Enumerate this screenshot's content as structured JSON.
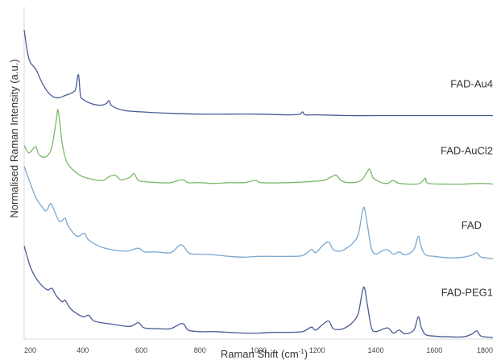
{
  "chart_data": {
    "type": "line",
    "xlabel": "Raman Shift (cm",
    "xlabel_sup": "-1",
    "xlabel_close": ")",
    "ylabel": "Normalised Raman Intensity (a.u.)",
    "xlim": [
      200,
      1800
    ],
    "ylim": [
      0,
      4.4
    ],
    "grid": false,
    "legend": "none",
    "x_ticks": [
      200,
      400,
      600,
      800,
      1000,
      1200,
      1400,
      1600,
      1800
    ],
    "x_tick_labels": [
      "200",
      "400",
      "600",
      "800",
      "1000",
      "1200",
      "1400",
      "1600",
      "1800"
    ],
    "series": [
      {
        "name": "FAD-Au4",
        "color": "#4a5a94",
        "baseline": 3.0,
        "points": [
          [
            200,
            4.15
          ],
          [
            210,
            3.88
          ],
          [
            220,
            3.72
          ],
          [
            240,
            3.62
          ],
          [
            260,
            3.45
          ],
          [
            280,
            3.32
          ],
          [
            300,
            3.25
          ],
          [
            320,
            3.24
          ],
          [
            340,
            3.27
          ],
          [
            360,
            3.3
          ],
          [
            375,
            3.35
          ],
          [
            385,
            3.55
          ],
          [
            392,
            3.28
          ],
          [
            400,
            3.22
          ],
          [
            430,
            3.16
          ],
          [
            460,
            3.14
          ],
          [
            480,
            3.16
          ],
          [
            490,
            3.2
          ],
          [
            500,
            3.13
          ],
          [
            540,
            3.07
          ],
          [
            600,
            3.05
          ],
          [
            700,
            3.03
          ],
          [
            800,
            3.02
          ],
          [
            900,
            3.02
          ],
          [
            1000,
            3.02
          ],
          [
            1100,
            3.01
          ],
          [
            1140,
            3.02
          ],
          [
            1150,
            3.05
          ],
          [
            1160,
            3.01
          ],
          [
            1200,
            3.01
          ],
          [
            1300,
            3.0
          ],
          [
            1400,
            3.0
          ],
          [
            1500,
            3.0
          ],
          [
            1600,
            3.0
          ],
          [
            1700,
            3.0
          ],
          [
            1800,
            3.0
          ]
        ]
      },
      {
        "name": "FAD-AuCl2",
        "color": "#7ab86a",
        "baseline": 2.1,
        "points": [
          [
            200,
            2.6
          ],
          [
            215,
            2.5
          ],
          [
            230,
            2.55
          ],
          [
            240,
            2.58
          ],
          [
            250,
            2.48
          ],
          [
            270,
            2.44
          ],
          [
            290,
            2.52
          ],
          [
            300,
            2.7
          ],
          [
            310,
            2.95
          ],
          [
            315,
            3.08
          ],
          [
            322,
            2.9
          ],
          [
            330,
            2.62
          ],
          [
            345,
            2.38
          ],
          [
            370,
            2.26
          ],
          [
            400,
            2.18
          ],
          [
            440,
            2.14
          ],
          [
            470,
            2.13
          ],
          [
            490,
            2.18
          ],
          [
            510,
            2.2
          ],
          [
            530,
            2.14
          ],
          [
            560,
            2.17
          ],
          [
            575,
            2.22
          ],
          [
            590,
            2.13
          ],
          [
            620,
            2.11
          ],
          [
            660,
            2.1
          ],
          [
            700,
            2.1
          ],
          [
            740,
            2.14
          ],
          [
            760,
            2.1
          ],
          [
            800,
            2.1
          ],
          [
            850,
            2.09
          ],
          [
            900,
            2.1
          ],
          [
            950,
            2.1
          ],
          [
            990,
            2.13
          ],
          [
            1010,
            2.1
          ],
          [
            1100,
            2.1
          ],
          [
            1200,
            2.12
          ],
          [
            1230,
            2.14
          ],
          [
            1250,
            2.18
          ],
          [
            1265,
            2.2
          ],
          [
            1285,
            2.12
          ],
          [
            1320,
            2.1
          ],
          [
            1350,
            2.13
          ],
          [
            1370,
            2.24
          ],
          [
            1380,
            2.28
          ],
          [
            1392,
            2.16
          ],
          [
            1420,
            2.1
          ],
          [
            1440,
            2.09
          ],
          [
            1460,
            2.13
          ],
          [
            1480,
            2.09
          ],
          [
            1540,
            2.08
          ],
          [
            1560,
            2.12
          ],
          [
            1570,
            2.16
          ],
          [
            1580,
            2.09
          ],
          [
            1650,
            2.08
          ],
          [
            1700,
            2.08
          ],
          [
            1760,
            2.09
          ],
          [
            1800,
            2.08
          ]
        ]
      },
      {
        "name": "FAD",
        "color": "#7ba7d1",
        "baseline": 1.1,
        "points": [
          [
            200,
            2.32
          ],
          [
            220,
            2.1
          ],
          [
            240,
            1.9
          ],
          [
            260,
            1.78
          ],
          [
            275,
            1.72
          ],
          [
            290,
            1.82
          ],
          [
            300,
            1.75
          ],
          [
            320,
            1.58
          ],
          [
            340,
            1.62
          ],
          [
            350,
            1.52
          ],
          [
            380,
            1.38
          ],
          [
            405,
            1.42
          ],
          [
            420,
            1.33
          ],
          [
            460,
            1.24
          ],
          [
            500,
            1.2
          ],
          [
            550,
            1.18
          ],
          [
            590,
            1.22
          ],
          [
            610,
            1.17
          ],
          [
            650,
            1.17
          ],
          [
            700,
            1.16
          ],
          [
            730,
            1.26
          ],
          [
            745,
            1.24
          ],
          [
            760,
            1.16
          ],
          [
            780,
            1.14
          ],
          [
            800,
            1.14
          ],
          [
            850,
            1.13
          ],
          [
            900,
            1.11
          ],
          [
            950,
            1.1
          ],
          [
            1000,
            1.11
          ],
          [
            1050,
            1.11
          ],
          [
            1100,
            1.11
          ],
          [
            1150,
            1.12
          ],
          [
            1180,
            1.2
          ],
          [
            1195,
            1.16
          ],
          [
            1220,
            1.26
          ],
          [
            1240,
            1.3
          ],
          [
            1255,
            1.2
          ],
          [
            1280,
            1.18
          ],
          [
            1300,
            1.22
          ],
          [
            1320,
            1.28
          ],
          [
            1340,
            1.4
          ],
          [
            1355,
            1.72
          ],
          [
            1362,
            1.75
          ],
          [
            1372,
            1.52
          ],
          [
            1385,
            1.22
          ],
          [
            1400,
            1.14
          ],
          [
            1420,
            1.18
          ],
          [
            1440,
            1.2
          ],
          [
            1460,
            1.14
          ],
          [
            1480,
            1.17
          ],
          [
            1500,
            1.13
          ],
          [
            1530,
            1.2
          ],
          [
            1545,
            1.38
          ],
          [
            1555,
            1.24
          ],
          [
            1570,
            1.13
          ],
          [
            1600,
            1.11
          ],
          [
            1650,
            1.09
          ],
          [
            1700,
            1.1
          ],
          [
            1730,
            1.13
          ],
          [
            1745,
            1.16
          ],
          [
            1760,
            1.1
          ],
          [
            1800,
            1.08
          ]
        ]
      },
      {
        "name": "FAD-PEG1",
        "color": "#4a5a94",
        "baseline": 0.05,
        "points": [
          [
            200,
            1.25
          ],
          [
            220,
            0.98
          ],
          [
            240,
            0.82
          ],
          [
            260,
            0.72
          ],
          [
            280,
            0.66
          ],
          [
            295,
            0.68
          ],
          [
            310,
            0.58
          ],
          [
            330,
            0.5
          ],
          [
            340,
            0.52
          ],
          [
            360,
            0.4
          ],
          [
            400,
            0.3
          ],
          [
            420,
            0.32
          ],
          [
            440,
            0.24
          ],
          [
            500,
            0.2
          ],
          [
            560,
            0.17
          ],
          [
            590,
            0.22
          ],
          [
            610,
            0.15
          ],
          [
            660,
            0.14
          ],
          [
            700,
            0.14
          ],
          [
            740,
            0.21
          ],
          [
            760,
            0.12
          ],
          [
            800,
            0.1
          ],
          [
            850,
            0.1
          ],
          [
            900,
            0.09
          ],
          [
            950,
            0.08
          ],
          [
            1000,
            0.08
          ],
          [
            1050,
            0.09
          ],
          [
            1100,
            0.09
          ],
          [
            1150,
            0.1
          ],
          [
            1180,
            0.16
          ],
          [
            1195,
            0.12
          ],
          [
            1220,
            0.2
          ],
          [
            1240,
            0.24
          ],
          [
            1255,
            0.14
          ],
          [
            1280,
            0.13
          ],
          [
            1300,
            0.16
          ],
          [
            1320,
            0.22
          ],
          [
            1340,
            0.34
          ],
          [
            1355,
            0.65
          ],
          [
            1362,
            0.68
          ],
          [
            1372,
            0.45
          ],
          [
            1385,
            0.16
          ],
          [
            1400,
            0.1
          ],
          [
            1440,
            0.15
          ],
          [
            1460,
            0.08
          ],
          [
            1480,
            0.12
          ],
          [
            1500,
            0.07
          ],
          [
            1530,
            0.12
          ],
          [
            1545,
            0.3
          ],
          [
            1555,
            0.16
          ],
          [
            1570,
            0.06
          ],
          [
            1600,
            0.04
          ],
          [
            1650,
            0.03
          ],
          [
            1700,
            0.03
          ],
          [
            1730,
            0.07
          ],
          [
            1745,
            0.11
          ],
          [
            1760,
            0.04
          ],
          [
            1800,
            0.02
          ]
        ]
      }
    ]
  }
}
